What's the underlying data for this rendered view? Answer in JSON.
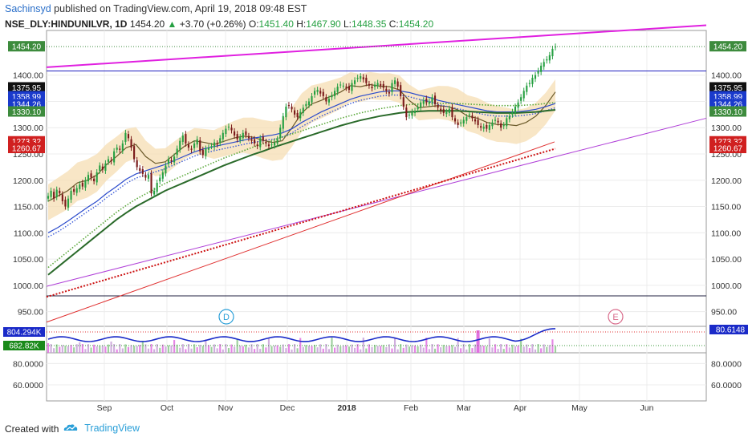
{
  "header": {
    "author": "Sachinsyd",
    "published_text": "published on TradingView.com, April 19, 2018 09:48 EST",
    "symbol": "NSE_DLY:HINDUNILVR, 1D",
    "price": "1454.20",
    "change_arrow": "▲",
    "change": "+3.70 (+0.26%)",
    "o_label": "O:",
    "o_value": "1451.40",
    "h_label": "H:",
    "h_value": "1467.90",
    "l_label": "L:",
    "l_value": "1448.35",
    "c_label": "C:",
    "c_value": "1454.20"
  },
  "footer": {
    "created_with": "Created with",
    "logo_text": "TradingView"
  },
  "colors": {
    "up_candle": "#26a042",
    "down_candle": "#7a1a1a",
    "magenta_line": "#e020e0",
    "purple_line": "#b040d8",
    "red_line": "#e03030",
    "blue_h_line": "#2020c0",
    "navy_h_line": "#202040",
    "cloud": "#f5deb3",
    "volume_line": "#1a2ac8"
  },
  "chart_data": [
    {
      "type": "candlestick",
      "title": "",
      "x_ticks": [
        "Sep",
        "Oct",
        "Nov",
        "Dec",
        "2018",
        "Feb",
        "Mar",
        "Apr",
        "May",
        "Jun"
      ],
      "y_ticks": [
        950,
        1000,
        1050,
        1100,
        1150,
        1200,
        1250,
        1300,
        1350,
        1400
      ],
      "y_tick_labels": [
        "950.00",
        "1000.00",
        "1050.00",
        "1100.00",
        "1150.00",
        "1200.00",
        "1250.00",
        "1300.00",
        "1350.00",
        "1400.00"
      ],
      "ylim": [
        925,
        1485
      ],
      "price_labels": [
        {
          "text": "1454.20",
          "value": 1454.2,
          "color": "#3d8b3d"
        },
        {
          "text": "1375.95",
          "value": 1375.95,
          "color": "#111111"
        },
        {
          "text": "1358.99",
          "value": 1358.99,
          "color": "#1a3acc"
        },
        {
          "text": "1344.26",
          "value": 1344.26,
          "color": "#1a3acc"
        },
        {
          "text": "1330.10",
          "value": 1330.1,
          "color": "#3d8b3d"
        },
        {
          "text": "1273.32",
          "value": 1273.32,
          "color": "#d02020"
        },
        {
          "text": "1260.67",
          "value": 1260.67,
          "color": "#d02020"
        }
      ],
      "closes": [
        1170,
        1180,
        1165,
        1182,
        1175,
        1160,
        1150,
        1165,
        1180,
        1178,
        1185,
        1192,
        1188,
        1200,
        1210,
        1205,
        1198,
        1215,
        1228,
        1220,
        1232,
        1240,
        1236,
        1255,
        1262,
        1258,
        1270,
        1290,
        1280,
        1262,
        1240,
        1225,
        1218,
        1212,
        1205,
        1210,
        1175,
        1180,
        1195,
        1205,
        1215,
        1228,
        1240,
        1236,
        1245,
        1260,
        1275,
        1285,
        1270,
        1262,
        1258,
        1270,
        1278,
        1255,
        1248,
        1260,
        1262,
        1265,
        1272,
        1268,
        1280,
        1290,
        1298,
        1302,
        1295,
        1285,
        1278,
        1282,
        1290,
        1286,
        1280,
        1275,
        1270,
        1265,
        1280,
        1275,
        1270,
        1265,
        1268,
        1272,
        1278,
        1300,
        1322,
        1340,
        1342,
        1335,
        1325,
        1320,
        1330,
        1338,
        1345,
        1350,
        1360,
        1370,
        1372,
        1365,
        1360,
        1350,
        1355,
        1362,
        1370,
        1378,
        1382,
        1380,
        1376,
        1372,
        1385,
        1390,
        1395,
        1398,
        1392,
        1385,
        1380,
        1375,
        1382,
        1385,
        1380,
        1376,
        1370,
        1365,
        1385,
        1390,
        1378,
        1360,
        1340,
        1320,
        1325,
        1330,
        1332,
        1340,
        1348,
        1352,
        1348,
        1350,
        1358,
        1345,
        1338,
        1332,
        1328,
        1330,
        1336,
        1320,
        1312,
        1305,
        1310,
        1315,
        1320,
        1325,
        1318,
        1312,
        1305,
        1300,
        1302,
        1298,
        1305,
        1310,
        1315,
        1310,
        1300,
        1305,
        1318,
        1322,
        1330,
        1340,
        1348,
        1358,
        1370,
        1380,
        1385,
        1395,
        1400,
        1408,
        1418,
        1425,
        1430,
        1438,
        1450,
        1454.2
      ],
      "series": [
        {
          "name": "",
          "color": "#6b5a2a",
          "values": [
            1160,
            1170,
            1180,
            1195,
            1200,
            1210,
            1230,
            1245,
            1262,
            1268,
            1245,
            1232,
            1235,
            1250,
            1265,
            1275,
            1272,
            1268,
            1274,
            1280,
            1284,
            1282,
            1276,
            1272,
            1275,
            1300,
            1328,
            1345,
            1352,
            1360,
            1368,
            1380,
            1378,
            1382,
            1379,
            1378,
            1372,
            1352,
            1338,
            1340,
            1342,
            1340,
            1334,
            1322,
            1318,
            1310,
            1306,
            1306,
            1304,
            1310,
            1322,
            1342,
            1368
          ]
        },
        {
          "name": "",
          "color": "#2a4acc",
          "values": [
            1100,
            1110,
            1122,
            1135,
            1148,
            1160,
            1175,
            1188,
            1202,
            1212,
            1218,
            1224,
            1230,
            1238,
            1246,
            1254,
            1260,
            1264,
            1268,
            1272,
            1276,
            1280,
            1283,
            1286,
            1290,
            1298,
            1310,
            1320,
            1330,
            1338,
            1346,
            1354,
            1360,
            1364,
            1368,
            1370,
            1370,
            1367,
            1362,
            1358,
            1352,
            1348,
            1344,
            1340,
            1336,
            1332,
            1330,
            1330,
            1330,
            1332,
            1335,
            1340,
            1346
          ]
        },
        {
          "name": "",
          "color": "#2a6a2a",
          "values": [
            1020,
            1035,
            1050,
            1065,
            1080,
            1095,
            1110,
            1125,
            1138,
            1150,
            1160,
            1170,
            1180,
            1188,
            1196,
            1204,
            1212,
            1220,
            1228,
            1235,
            1242,
            1249,
            1255,
            1262,
            1268,
            1274,
            1280,
            1286,
            1292,
            1298,
            1304,
            1309,
            1314,
            1318,
            1322,
            1325,
            1328,
            1330,
            1331,
            1332,
            1332,
            1332,
            1332,
            1331,
            1330,
            1329,
            1328,
            1328,
            1328,
            1329,
            1330,
            1332,
            1334
          ]
        }
      ],
      "annotations": [
        "D",
        "E"
      ],
      "trendlines": [
        {
          "name": "upper-magenta",
          "from": [
            0,
            1415
          ],
          "to": [
            1.0,
            1495
          ]
        },
        {
          "name": "lower-purple",
          "from": [
            0,
            998
          ],
          "to": [
            1.0,
            1318
          ]
        },
        {
          "name": "red-ma",
          "from": [
            0,
            930
          ],
          "to": [
            0.77,
            1273
          ]
        }
      ],
      "h_levels": [
        1408,
        980
      ]
    },
    {
      "type": "line",
      "title": "",
      "name": "volume",
      "labels": [
        "804.294K",
        "682.82K",
        "80.6148"
      ],
      "ylim": [
        0,
        1000
      ]
    },
    {
      "type": "line",
      "title": "",
      "y_ticks": [
        60,
        80
      ],
      "y_tick_labels": [
        "60.0000",
        "80.0000"
      ],
      "ylim": [
        45,
        90
      ]
    }
  ]
}
